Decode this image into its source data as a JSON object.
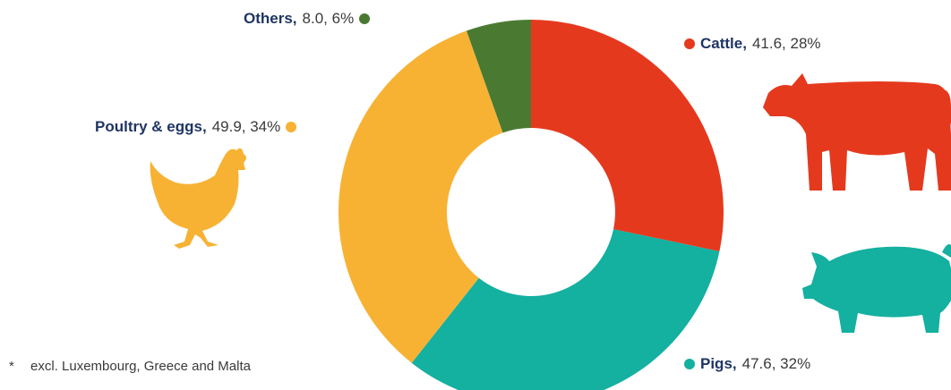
{
  "chart_data": {
    "type": "pie",
    "donut": true,
    "title": "",
    "slices": [
      {
        "name": "Cattle",
        "value": 41.6,
        "percent": "28%",
        "value_label": "41.6",
        "color": "#e5391e"
      },
      {
        "name": "Pigs",
        "value": 47.6,
        "percent": "32%",
        "value_label": "47.6",
        "color": "#14b0a0"
      },
      {
        "name": "Poultry & eggs",
        "value": 49.9,
        "percent": "34%",
        "value_label": "49.9",
        "color": "#f7b234"
      },
      {
        "name": "Others",
        "value": 8.0,
        "percent": "6%",
        "value_label": "8.0",
        "color": "#4a7a32"
      }
    ],
    "start_angle_deg": 0,
    "direction": "clockwise"
  },
  "labels": {
    "others": {
      "name": "Others,",
      "rest": "8.0, 6%"
    },
    "cattle": {
      "name": "Cattle,",
      "rest": "41.6, 28%"
    },
    "poultry": {
      "name": "Poultry & eggs,",
      "rest": "49.9, 34%"
    },
    "pigs": {
      "name": "Pigs,",
      "rest": "47.6, 32%"
    }
  },
  "footnote": {
    "star": "*",
    "text": "excl. Luxembourg, Greece and Malta"
  },
  "icons": [
    "cow-icon",
    "pig-icon",
    "chicken-icon"
  ]
}
